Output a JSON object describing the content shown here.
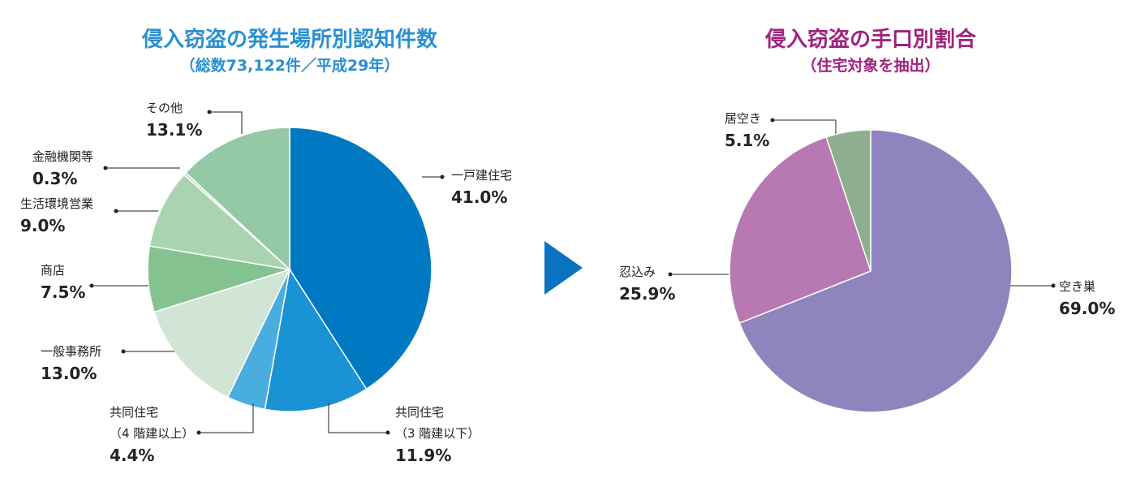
{
  "chart_data": [
    {
      "type": "pie",
      "title": "侵入窃盗の発生場所別認知件数",
      "subtitle": "（総数73,122件／平成29年）",
      "title_color": "#2a8fd0",
      "categories": [
        "一戸建住宅",
        "共同住宅\n（3 階建以下）",
        "共同住宅\n（4 階建以上）",
        "一般事務所",
        "商店",
        "生活環境営業",
        "金融機関等",
        "その他"
      ],
      "values": [
        41.0,
        11.9,
        4.4,
        13.0,
        7.5,
        9.0,
        0.3,
        13.1
      ],
      "value_labels": [
        "41.0%",
        "11.9%",
        "4.4%",
        "13.0%",
        "7.5%",
        "9.0%",
        "0.3%",
        "13.1%"
      ],
      "colors": [
        "#0079c2",
        "#1a93d5",
        "#4aade0",
        "#d0e5d5",
        "#84c28f",
        "#aad3b0",
        "#c0dcc4",
        "#95c9a5"
      ]
    },
    {
      "type": "pie",
      "title": "侵入窃盗の手口別割合",
      "subtitle": "（住宅対象を抽出）",
      "title_color": "#a0237f",
      "categories": [
        "空き巣",
        "忍込み",
        "居空き"
      ],
      "values": [
        69.0,
        25.9,
        5.1
      ],
      "value_labels": [
        "69.0%",
        "25.9%",
        "5.1%"
      ],
      "colors": [
        "#8f84bd",
        "#b878b2",
        "#8fae8f"
      ]
    }
  ]
}
